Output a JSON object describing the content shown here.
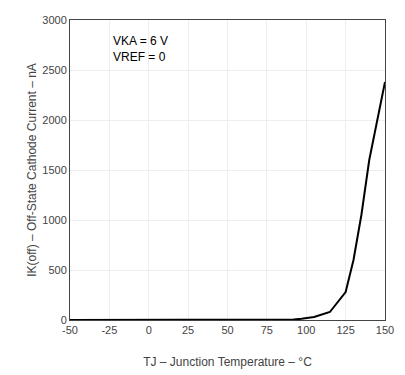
{
  "chart_data": {
    "type": "line",
    "x": [
      -50,
      0,
      85,
      88,
      92,
      97,
      105,
      115,
      125,
      130,
      135,
      140,
      145,
      150
    ],
    "values": [
      0,
      0,
      0,
      2,
      5,
      12,
      30,
      80,
      280,
      600,
      1050,
      1600,
      2000,
      2380
    ],
    "color": "#000000",
    "xlabel": "TJ – Junction Temperature – °C",
    "ylabel": "IK(off) – Off-State Cathode Current – nA",
    "annotation": [
      "VKA = 6 V",
      "VREF = 0"
    ],
    "xlim": [
      -50,
      150
    ],
    "ylim": [
      0,
      3000
    ],
    "xticks": [
      -50,
      -25,
      0,
      25,
      50,
      75,
      100,
      125,
      150
    ],
    "yticks": [
      0,
      500,
      1000,
      1500,
      2000,
      2500,
      3000
    ],
    "grid": true
  }
}
